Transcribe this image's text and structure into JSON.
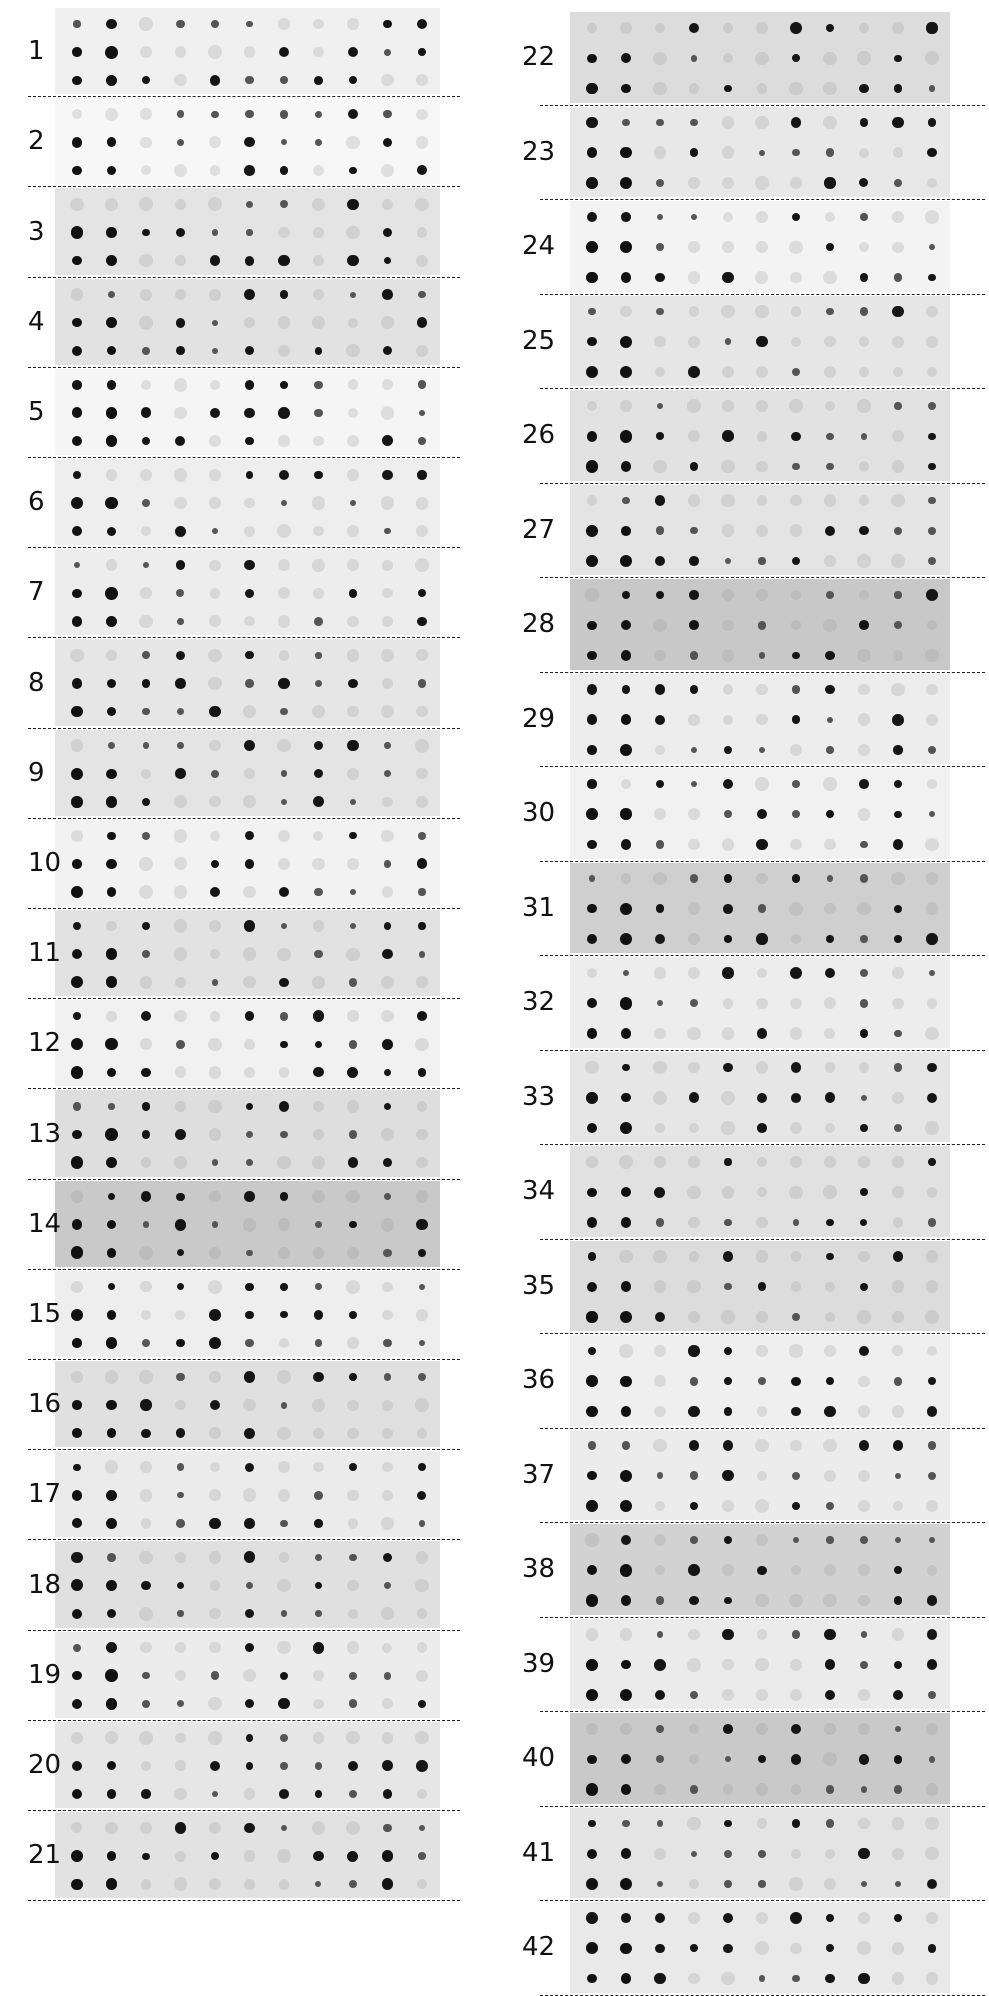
{
  "figure": {
    "left_column": {
      "labels": [
        "1",
        "2",
        "3",
        "4",
        "5",
        "6",
        "7",
        "8",
        "9",
        "10",
        "11",
        "12",
        "13",
        "14",
        "15",
        "16",
        "17",
        "18",
        "19",
        "20",
        "21"
      ]
    },
    "right_column": {
      "labels": [
        "22",
        "23",
        "24",
        "25",
        "26",
        "27",
        "28",
        "29",
        "30",
        "31",
        "32",
        "33",
        "34",
        "35",
        "36",
        "37",
        "38",
        "39",
        "40",
        "41",
        "42"
      ]
    },
    "strip_tones": [
      "#f0f0f0",
      "#f7f7f7",
      "#e4e4e4",
      "#e2e2e2",
      "#f5f5f5",
      "#eeeeee",
      "#ededed",
      "#e6e6e6",
      "#e4e4e4",
      "#f2f2f2",
      "#e2e2e2",
      "#f1f1f1",
      "#dedede",
      "#c9c9c9",
      "#eeeeee",
      "#e0e0e0",
      "#ebebeb",
      "#e0e0e0",
      "#ececec",
      "#e6e6e6",
      "#e2e2e2",
      "#dcdcdc",
      "#e8e8e8",
      "#f3f3f3",
      "#e6e6e6",
      "#e2e2e2",
      "#e4e4e4",
      "#c8c8c8",
      "#ededed",
      "#f1f1f1",
      "#cfcfcf",
      "#ededed",
      "#e6e6e6",
      "#e1e1e1",
      "#dcdcdc",
      "#efefef",
      "#ececec",
      "#d2d2d2",
      "#ebebeb",
      "#c9c9c9",
      "#e4e4e4",
      "#e9e9e9"
    ]
  }
}
